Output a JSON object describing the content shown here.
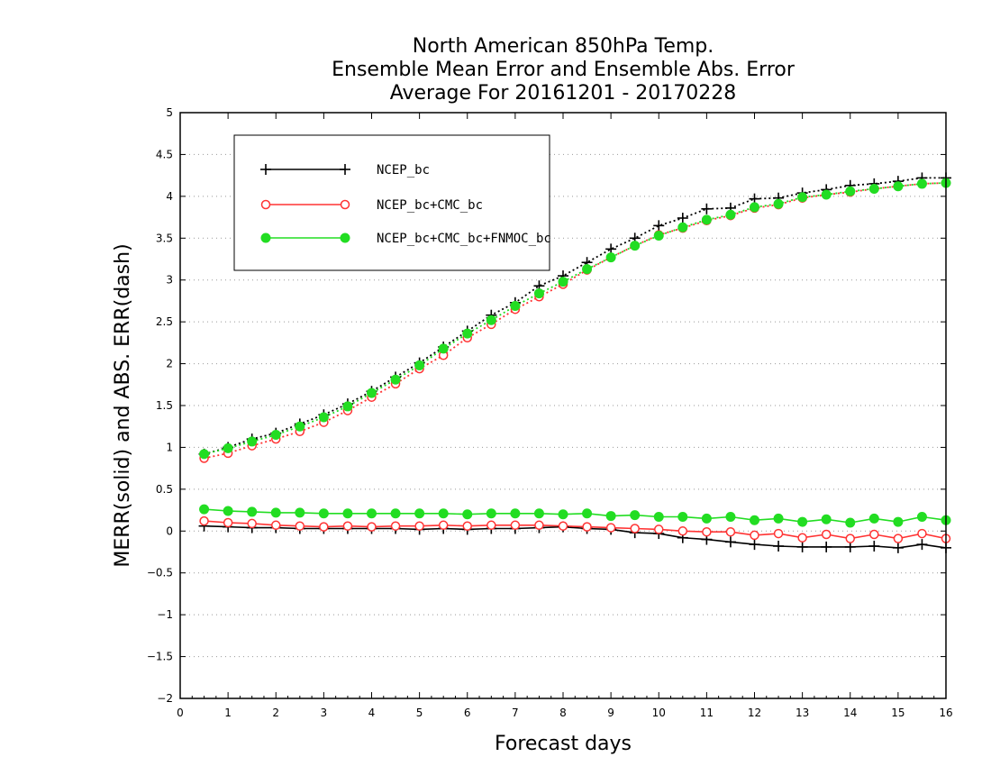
{
  "chart_data": {
    "type": "line",
    "title_lines": [
      "North American 850hPa Temp.",
      "Ensemble Mean Error and Ensemble Abs. Error",
      "Average For 20161201 - 20170228"
    ],
    "xlabel": "Forecast days",
    "ylabel": "MERR(solid) and ABS. ERR(dash)",
    "xlim": [
      0,
      16
    ],
    "ylim": [
      -2,
      5
    ],
    "x_ticks": [
      0,
      1,
      2,
      3,
      4,
      5,
      6,
      7,
      8,
      9,
      10,
      11,
      12,
      13,
      14,
      15,
      16
    ],
    "y_ticks": [
      -2,
      -1.5,
      -1,
      -0.5,
      0,
      0.5,
      1,
      1.5,
      2,
      2.5,
      3,
      3.5,
      4,
      4.5,
      5
    ],
    "y_tick_labels": [
      "−2",
      "−1.5",
      "−1",
      "−0.5",
      "0",
      "0.5",
      "1",
      "1.5",
      "2",
      "2.5",
      "3",
      "3.5",
      "4",
      "4.5",
      "5"
    ],
    "grid": "horizontal dotted",
    "legend_position": "top-left",
    "x": [
      0.5,
      1,
      1.5,
      2,
      2.5,
      3,
      3.5,
      4,
      4.5,
      5,
      5.5,
      6,
      6.5,
      7,
      7.5,
      8,
      8.5,
      9,
      9.5,
      10,
      10.5,
      11,
      11.5,
      12,
      12.5,
      13,
      13.5,
      14,
      14.5,
      15,
      15.5,
      16
    ],
    "series": [
      {
        "name": "NCEP_bc",
        "color": "#000000",
        "marker": "plus",
        "merr": [
          0.06,
          0.05,
          0.04,
          0.04,
          0.03,
          0.03,
          0.03,
          0.03,
          0.03,
          0.02,
          0.03,
          0.02,
          0.03,
          0.03,
          0.04,
          0.05,
          0.03,
          0.02,
          -0.02,
          -0.03,
          -0.08,
          -0.1,
          -0.13,
          -0.16,
          -0.18,
          -0.19,
          -0.19,
          -0.19,
          -0.18,
          -0.2,
          -0.16,
          -0.2
        ],
        "abs_err": [
          0.92,
          1.0,
          1.1,
          1.17,
          1.28,
          1.39,
          1.52,
          1.67,
          1.84,
          2.01,
          2.2,
          2.39,
          2.58,
          2.73,
          2.93,
          3.05,
          3.21,
          3.37,
          3.5,
          3.65,
          3.74,
          3.85,
          3.86,
          3.97,
          3.98,
          4.04,
          4.08,
          4.13,
          4.15,
          4.18,
          4.22,
          4.22
        ]
      },
      {
        "name": "NCEP_bc+CMC_bc",
        "color": "#ff3333",
        "marker": "open-circle",
        "merr": [
          0.12,
          0.1,
          0.09,
          0.07,
          0.06,
          0.05,
          0.06,
          0.05,
          0.06,
          0.06,
          0.07,
          0.06,
          0.07,
          0.07,
          0.07,
          0.06,
          0.05,
          0.04,
          0.03,
          0.02,
          0.0,
          -0.01,
          -0.01,
          -0.05,
          -0.03,
          -0.08,
          -0.04,
          -0.09,
          -0.04,
          -0.09,
          -0.03,
          -0.09
        ],
        "abs_err": [
          0.87,
          0.93,
          1.02,
          1.1,
          1.19,
          1.3,
          1.44,
          1.6,
          1.76,
          1.94,
          2.1,
          2.31,
          2.47,
          2.65,
          2.8,
          2.95,
          3.12,
          3.27,
          3.41,
          3.54,
          3.62,
          3.71,
          3.77,
          3.86,
          3.9,
          3.98,
          4.02,
          4.05,
          4.09,
          4.12,
          4.15,
          4.16
        ]
      },
      {
        "name": "NCEP_bc+CMC_bc+FNMOC_bc",
        "color": "#22dd22",
        "marker": "filled-circle",
        "merr": [
          0.26,
          0.24,
          0.23,
          0.22,
          0.22,
          0.21,
          0.21,
          0.21,
          0.21,
          0.21,
          0.21,
          0.2,
          0.21,
          0.21,
          0.21,
          0.2,
          0.21,
          0.18,
          0.19,
          0.17,
          0.17,
          0.15,
          0.17,
          0.13,
          0.15,
          0.11,
          0.14,
          0.1,
          0.15,
          0.11,
          0.17,
          0.13
        ],
        "abs_err": [
          0.92,
          0.99,
          1.07,
          1.15,
          1.25,
          1.36,
          1.49,
          1.65,
          1.81,
          1.98,
          2.18,
          2.36,
          2.52,
          2.69,
          2.84,
          2.98,
          3.13,
          3.27,
          3.41,
          3.53,
          3.63,
          3.72,
          3.78,
          3.87,
          3.91,
          3.99,
          4.02,
          4.06,
          4.09,
          4.12,
          4.15,
          4.16
        ]
      }
    ]
  }
}
